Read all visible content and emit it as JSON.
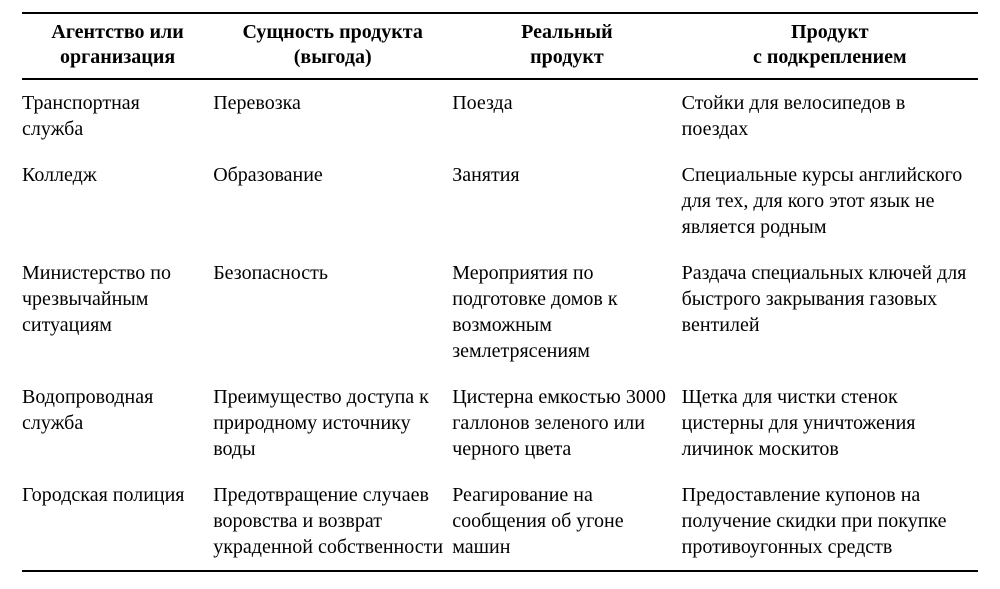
{
  "table": {
    "type": "table",
    "background_color": "#ffffff",
    "text_color": "#000000",
    "border_color": "#000000",
    "font_family": "Georgia, Times New Roman, serif",
    "header_fontsize": 20,
    "body_fontsize": 20,
    "columns": [
      {
        "key": "agency",
        "label_line1": "Агентство или",
        "label_line2": "организация",
        "width_pct": 20,
        "align": "left"
      },
      {
        "key": "essence",
        "label_line1": "Сущность продукта",
        "label_line2": "(выгода)",
        "width_pct": 25,
        "align": "left"
      },
      {
        "key": "real",
        "label_line1": "Реальный",
        "label_line2": "продукт",
        "width_pct": 24,
        "align": "left"
      },
      {
        "key": "augmented",
        "label_line1": "Продукт",
        "label_line2": "с подкреплением",
        "width_pct": 31,
        "align": "left"
      }
    ],
    "rows": [
      {
        "agency": "Транспортная служба",
        "essence": "Перевозка",
        "real": "Поезда",
        "augmented": "Стойки для велосипедов в поездах"
      },
      {
        "agency": "Колледж",
        "essence": "Образование",
        "real": "Занятия",
        "augmented": "Специальные курсы английского для тех, для кого этот язык не является родным"
      },
      {
        "agency": "Министерство по чрезвычайным ситуациям",
        "essence": "Безопасность",
        "real": "Мероприятия по подготовке домов к возможным землетрясениям",
        "augmented": "Раздача специальных ключей для быстрого закрывания газовых вентилей"
      },
      {
        "agency": "Водопроводная служба",
        "essence": "Преимущество доступа к природному источнику воды",
        "real": "Цистерна емкостью 3000 галлонов зеленого или черного цвета",
        "augmented": "Щетка для чистки стенок цистерны для уничтожения личинок москитов"
      },
      {
        "agency": "Городская полиция",
        "essence": "Предотвращение случаев воровства и возврат украденной собственности",
        "real": "Реагирование на сообщения об угоне машин",
        "augmented": "Предоставление купонов на получение скидки при покупке противоугонных средств"
      }
    ]
  }
}
